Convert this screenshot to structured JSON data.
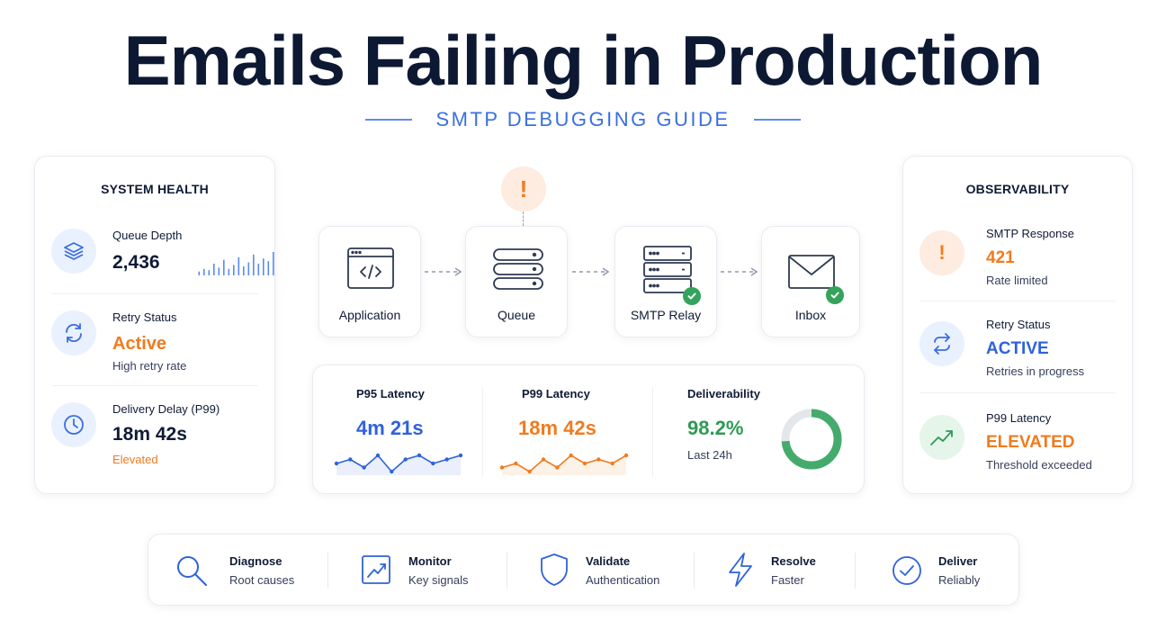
{
  "header": {
    "title": "Emails Failing in Production",
    "subtitle": "SMTP DEBUGGING GUIDE"
  },
  "colors": {
    "accent": "#3a6fe0",
    "warning": "#f07b1f",
    "success": "#2f9a55",
    "dark": "#0f1b35"
  },
  "system_health": {
    "title": "SYSTEM HEALTH",
    "items": [
      {
        "icon": "layers-icon",
        "label": "Queue Depth",
        "value": "2,436",
        "note": "",
        "sparkline": [
          3,
          5,
          4,
          9,
          6,
          12,
          5,
          8,
          14,
          7,
          10,
          16,
          9,
          13,
          11,
          18
        ]
      },
      {
        "icon": "refresh-icon",
        "label": "Retry Status",
        "value": "Active",
        "note": "High retry rate"
      },
      {
        "icon": "clock-icon",
        "label": "Delivery Delay (P99)",
        "value": "18m 42s",
        "note": "Elevated"
      }
    ]
  },
  "pipeline": {
    "alert_symbol": "!",
    "stages": [
      {
        "icon": "code-window-icon",
        "label": "Application"
      },
      {
        "icon": "queue-stack-icon",
        "label": "Queue"
      },
      {
        "icon": "server-icon",
        "label": "SMTP Relay",
        "ok": true
      },
      {
        "icon": "envelope-icon",
        "label": "Inbox",
        "ok": true
      }
    ]
  },
  "latency": {
    "p95": {
      "label": "P95 Latency",
      "value": "4m 21s",
      "trend": [
        4,
        5,
        3,
        6,
        2,
        5,
        6,
        4,
        5,
        6
      ]
    },
    "p99": {
      "label": "P99 Latency",
      "value": "18m 42s",
      "trend": [
        3,
        4,
        2,
        5,
        3,
        6,
        4,
        5,
        4,
        6
      ]
    },
    "deliverability": {
      "label": "Deliverability",
      "value": "98.2%",
      "note": "Last 24h",
      "percent": 98.2
    }
  },
  "observability": {
    "title": "OBSERVABILITY",
    "items": [
      {
        "icon": "alert-icon",
        "label": "SMTP Response",
        "value": "421",
        "note": "Rate limited"
      },
      {
        "icon": "swap-arrows-icon",
        "label": "Retry Status",
        "value": "ACTIVE",
        "note": "Retries in progress"
      },
      {
        "icon": "trend-up-icon",
        "label": "P99 Latency",
        "value": "ELEVATED",
        "note": "Threshold exceeded"
      }
    ]
  },
  "features": [
    {
      "icon": "search-icon",
      "title": "Diagnose",
      "sub": "Root causes"
    },
    {
      "icon": "chart-monitor-icon",
      "title": "Monitor",
      "sub": "Key signals"
    },
    {
      "icon": "shield-icon",
      "title": "Validate",
      "sub": "Authentication"
    },
    {
      "icon": "lightning-icon",
      "title": "Resolve",
      "sub": "Faster"
    },
    {
      "icon": "check-circle-icon",
      "title": "Deliver",
      "sub": "Reliably"
    }
  ]
}
